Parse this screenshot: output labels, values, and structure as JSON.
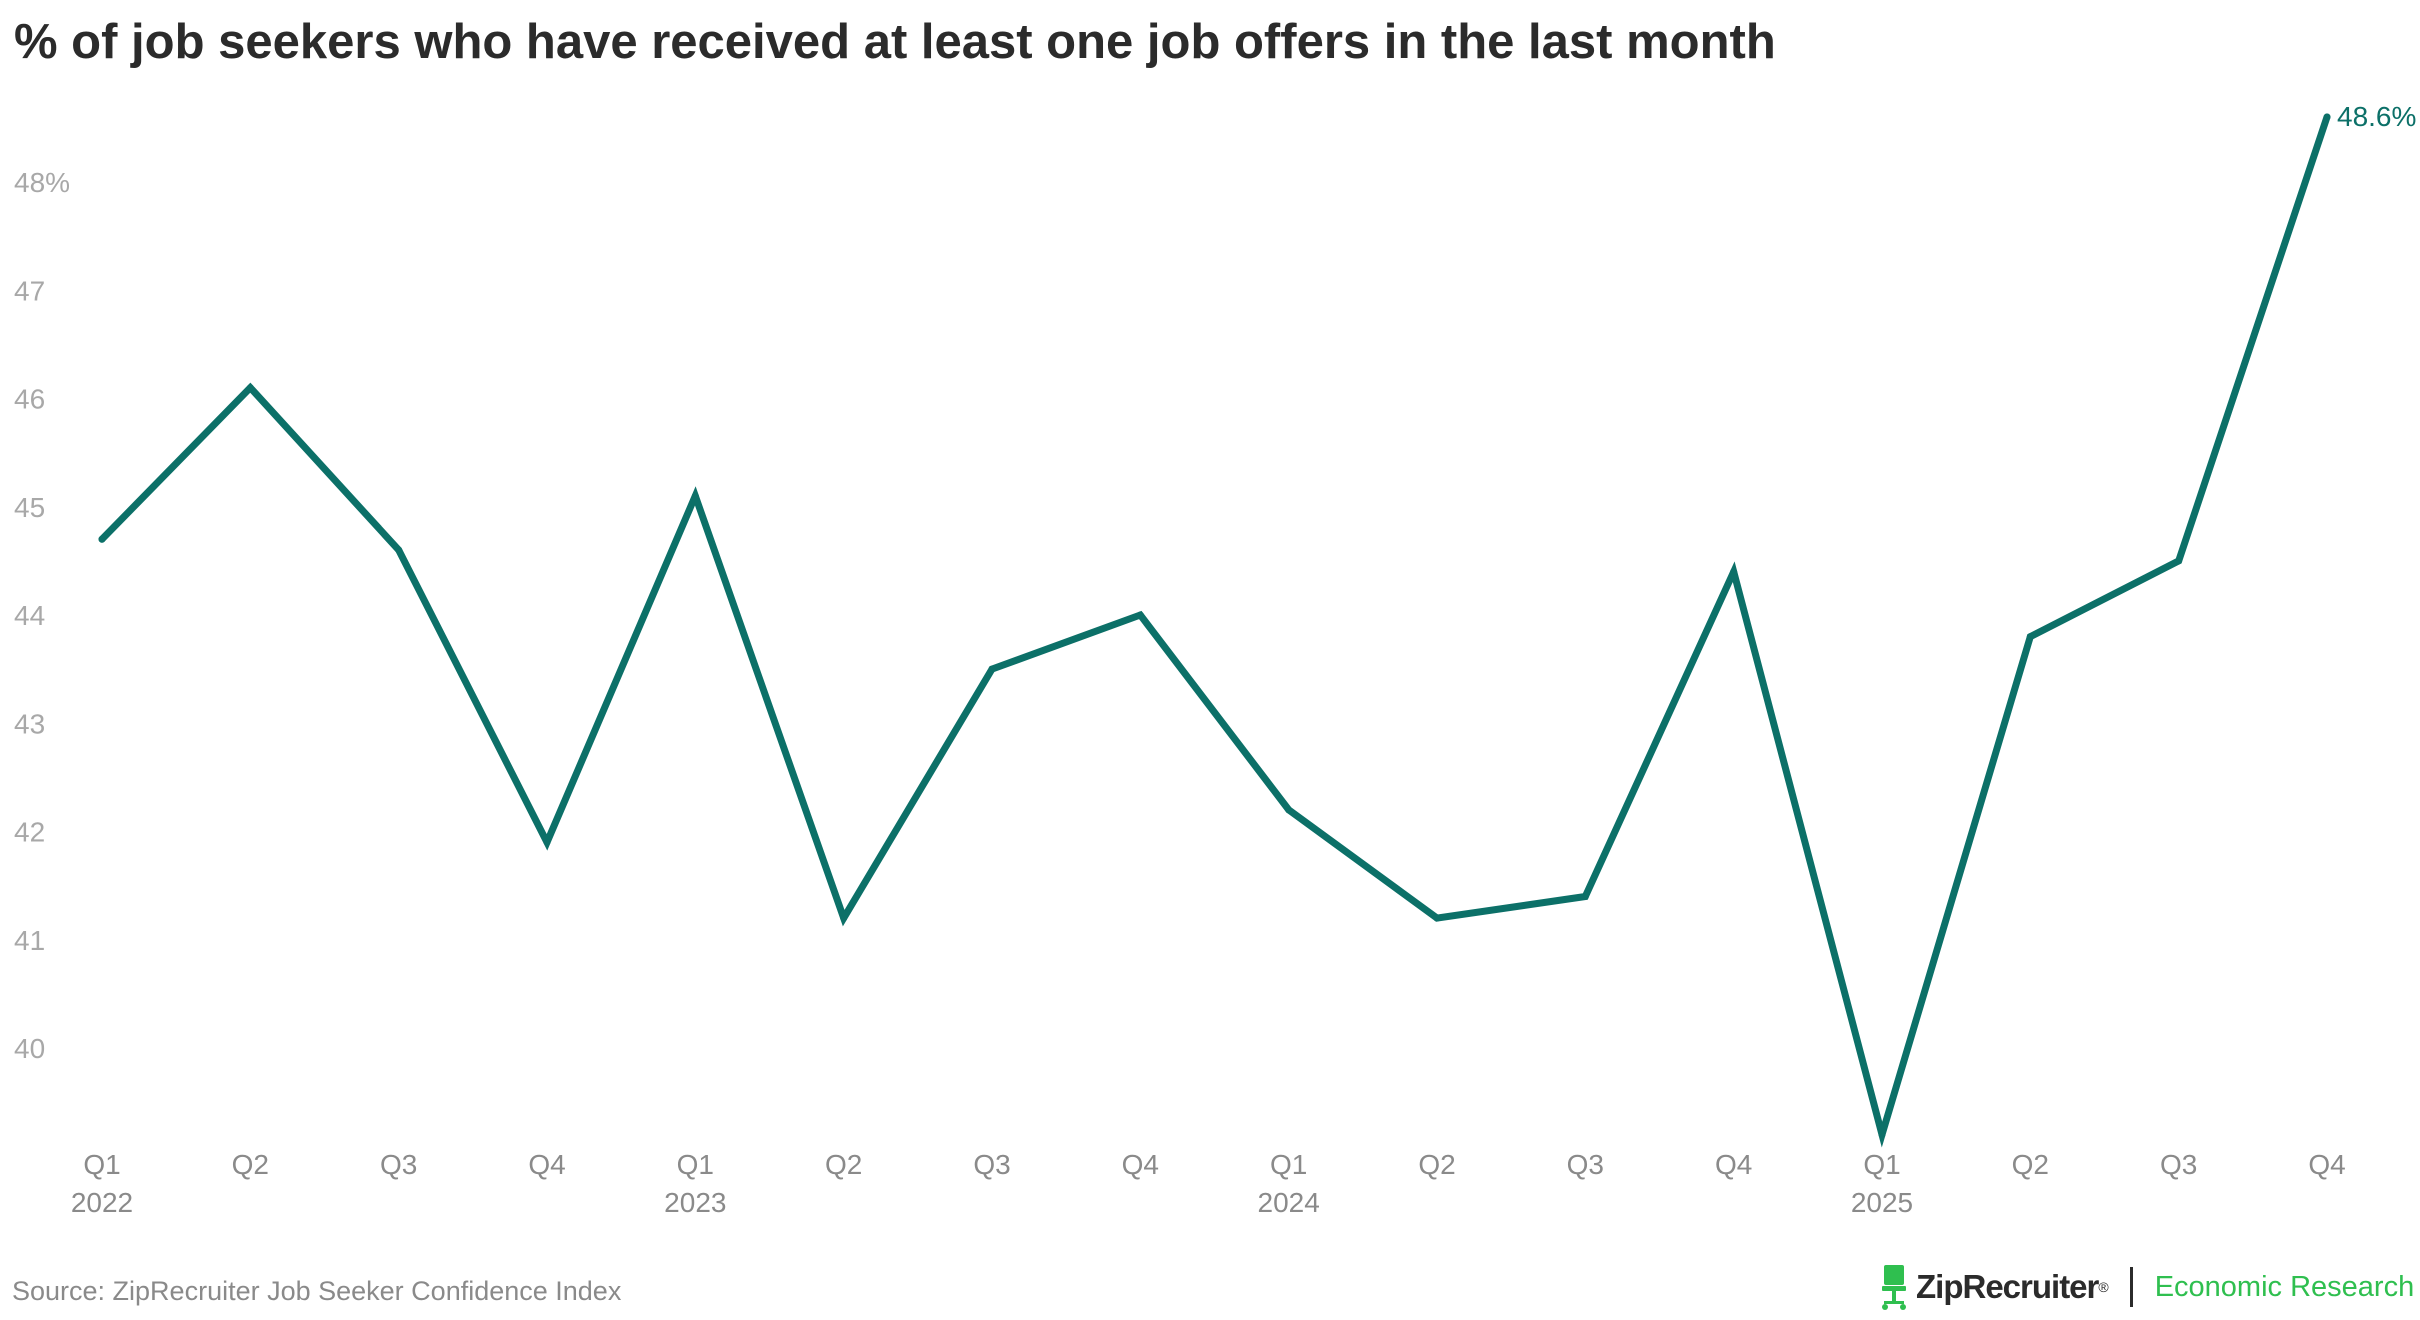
{
  "title": "% of job seekers who have received at least one job offers in the last month",
  "source": "Source: ZipRecruiter Job Seeker Confidence Index",
  "brand": {
    "name": "ZipRecruiter",
    "trademark": "®",
    "subtitle": "Economic Research",
    "icon": "chair-icon",
    "accent_color": "#2fbf4f"
  },
  "colors": {
    "line": "#0c7068",
    "tick_label": "#a8a8a8",
    "axis_label": "#8a8a8a"
  },
  "chart_data": {
    "type": "line",
    "x": [
      "Q1 2022",
      "Q2 2022",
      "Q3 2022",
      "Q4 2022",
      "Q1 2023",
      "Q2 2023",
      "Q3 2023",
      "Q4 2023",
      "Q1 2024",
      "Q2 2024",
      "Q3 2024",
      "Q4 2024",
      "Q1 2025",
      "Q2 2025",
      "Q3 2025",
      "Q4 2025"
    ],
    "quarter_labels": [
      "Q1",
      "Q2",
      "Q3",
      "Q4",
      "Q1",
      "Q2",
      "Q3",
      "Q4",
      "Q1",
      "Q2",
      "Q3",
      "Q4",
      "Q1",
      "Q2",
      "Q3",
      "Q4"
    ],
    "year_labels": [
      "2022",
      "",
      "",
      "",
      "2023",
      "",
      "",
      "",
      "2024",
      "",
      "",
      "",
      "2025",
      "",
      "",
      ""
    ],
    "series": [
      {
        "name": "",
        "values": [
          44.7,
          46.1,
          44.6,
          41.9,
          45.1,
          41.2,
          43.5,
          44.0,
          42.2,
          41.2,
          41.4,
          44.4,
          39.2,
          43.8,
          44.5,
          48.6
        ]
      }
    ],
    "y_ticks": [
      40,
      41,
      42,
      43,
      44,
      45,
      46,
      47,
      48
    ],
    "y_tick_labels": [
      "40",
      "41",
      "42",
      "43",
      "44",
      "45",
      "46",
      "47",
      "48%"
    ],
    "ylim": [
      39.2,
      48.6
    ],
    "end_label": "48.6%",
    "grid": false,
    "title": "% of job seekers who have received at least one job offers in the last month",
    "xlabel": "",
    "ylabel": ""
  }
}
